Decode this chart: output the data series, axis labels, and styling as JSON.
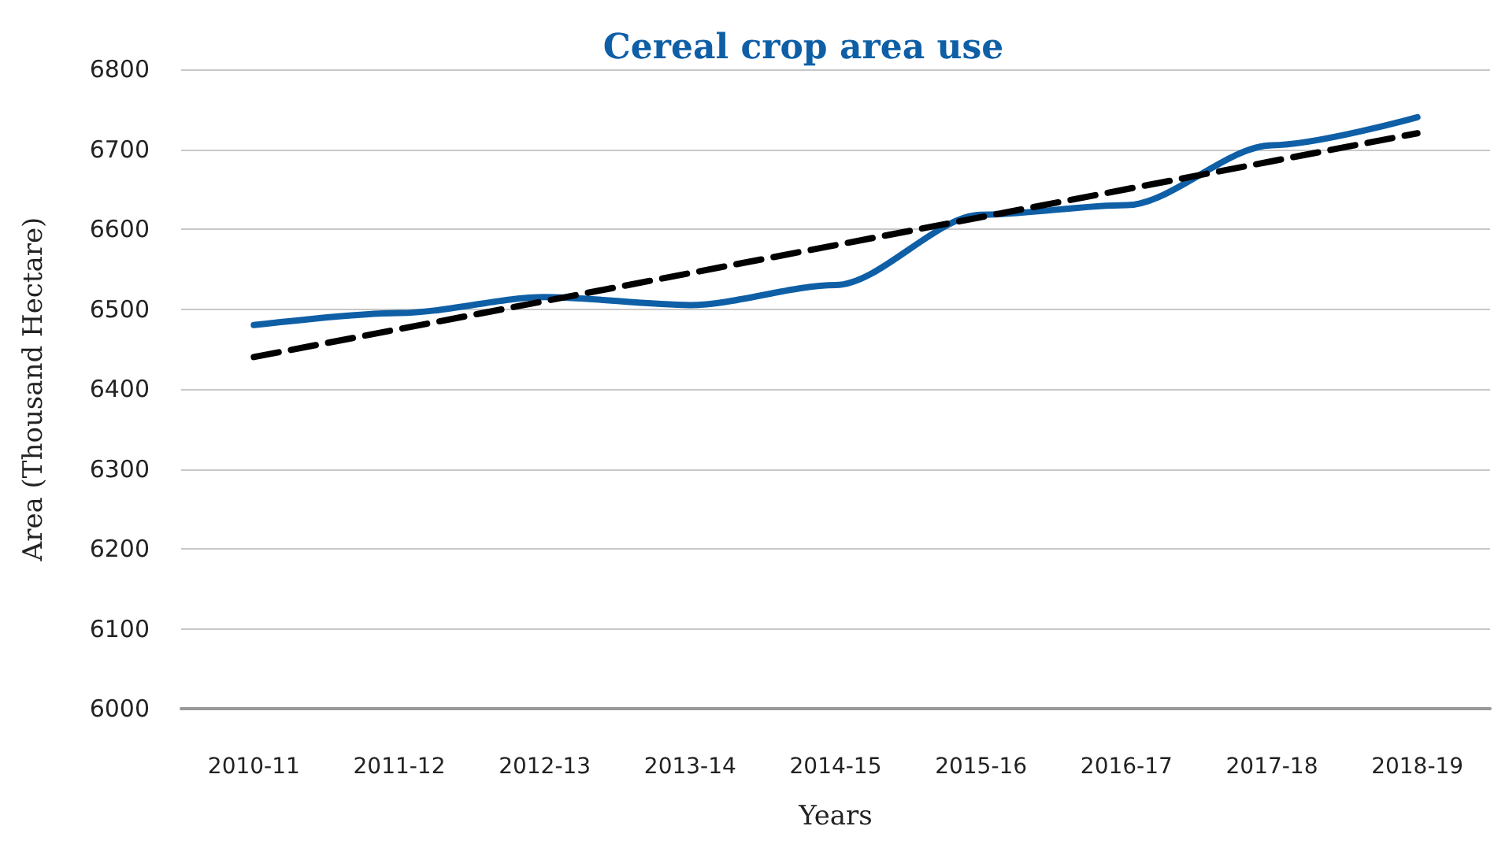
{
  "chart_data": {
    "type": "line",
    "title": "Cereal crop area use",
    "xlabel": "Years",
    "ylabel": "Area (Thousand Hectare)",
    "categories": [
      "2010-11",
      "2011-12",
      "2012-13",
      "2013-14",
      "2014-15",
      "2015-16",
      "2016-17",
      "2017-18",
      "2018-19"
    ],
    "series": [
      {
        "color": "#0e5fa6",
        "line_style": "solid",
        "values": [
          6480,
          6495,
          6515,
          6505,
          6530,
          6618,
          6630,
          6705,
          6740
        ]
      },
      {
        "color": "#000000",
        "line_style": "dashed",
        "values": [
          6440,
          6475,
          6510,
          6545,
          6580,
          6615,
          6650,
          6685,
          6720
        ]
      }
    ],
    "ylim": [
      6000,
      6800
    ],
    "yticks": [
      6000,
      6100,
      6200,
      6300,
      6400,
      6500,
      6600,
      6700,
      6800
    ],
    "grid": "y",
    "marker": "none"
  }
}
